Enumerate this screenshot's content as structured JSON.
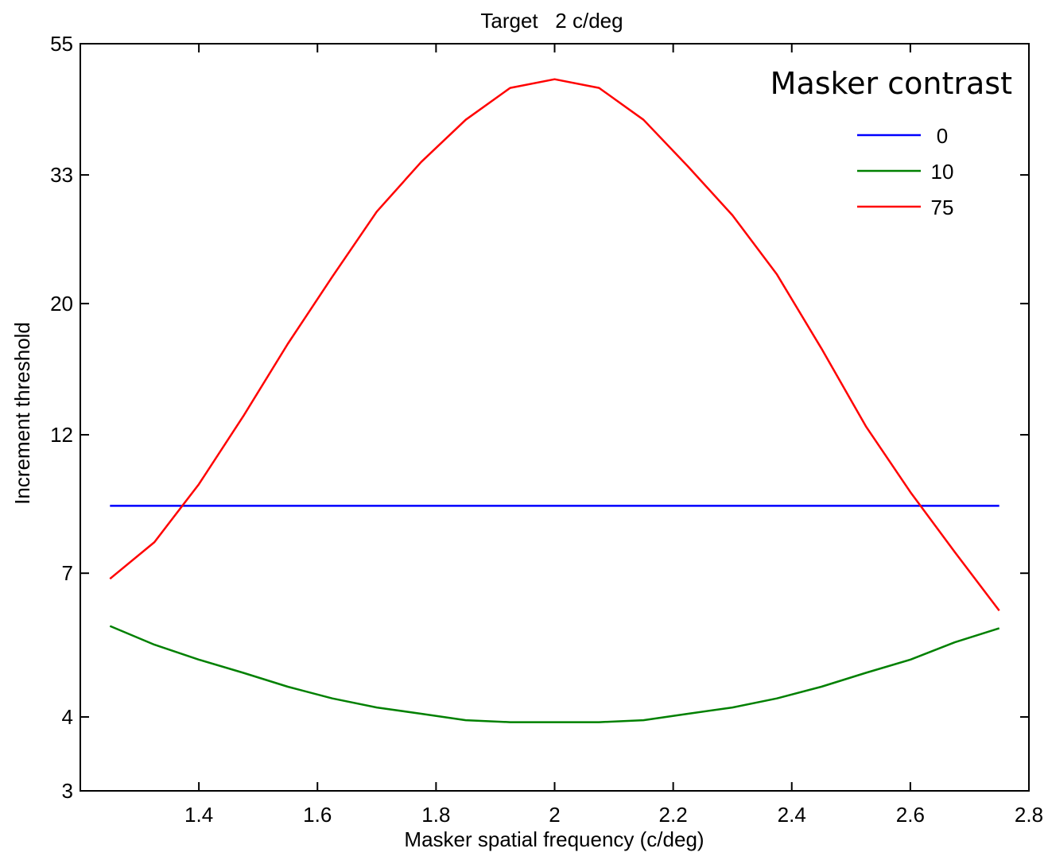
{
  "chart_data": {
    "type": "line",
    "title": "Target   2 c/deg",
    "xlabel": "Masker spatial frequency (c/deg)",
    "ylabel": "Increment threshold",
    "xlim": [
      1.2,
      2.8
    ],
    "xticks": [
      1.4,
      1.6,
      1.8,
      2,
      2.2,
      2.4,
      2.6,
      2.8
    ],
    "xtick_labels": [
      "1.4",
      "1.6",
      "1.8",
      "2",
      "2.2",
      "2.4",
      "2.6",
      "2.8"
    ],
    "yscale": "log",
    "ylim": [
      3,
      55
    ],
    "yticks": [
      3,
      4,
      7,
      12,
      20,
      33,
      55
    ],
    "ytick_labels": [
      "3",
      "4",
      "7",
      "12",
      "20",
      "33",
      "55"
    ],
    "grid": false,
    "legend": {
      "title": "Masker contrast",
      "position": "top-right"
    },
    "x": [
      1.25,
      1.325,
      1.4,
      1.475,
      1.55,
      1.625,
      1.7,
      1.775,
      1.85,
      1.925,
      2.0,
      2.075,
      2.15,
      2.225,
      2.3,
      2.375,
      2.45,
      2.525,
      2.6,
      2.675,
      2.75
    ],
    "series": [
      {
        "name": "0",
        "color": "#0000ff",
        "values": [
          9.1,
          9.1,
          9.1,
          9.1,
          9.1,
          9.1,
          9.1,
          9.1,
          9.1,
          9.1,
          9.1,
          9.1,
          9.1,
          9.1,
          9.1,
          9.1,
          9.1,
          9.1,
          9.1,
          9.1,
          9.1
        ]
      },
      {
        "name": "10",
        "color": "#008000",
        "values": [
          5.7,
          5.3,
          5.0,
          4.75,
          4.5,
          4.3,
          4.15,
          4.05,
          3.95,
          3.92,
          3.92,
          3.92,
          3.95,
          4.05,
          4.15,
          4.3,
          4.5,
          4.75,
          5.0,
          5.35,
          5.65
        ]
      },
      {
        "name": "75",
        "color": "#ff0000",
        "values": [
          6.85,
          7.9,
          9.9,
          12.9,
          17.1,
          22.2,
          28.6,
          34.7,
          40.9,
          46.3,
          47.9,
          46.3,
          40.9,
          34.1,
          28.2,
          22.4,
          16.8,
          12.4,
          9.6,
          7.6,
          6.05
        ]
      }
    ]
  }
}
